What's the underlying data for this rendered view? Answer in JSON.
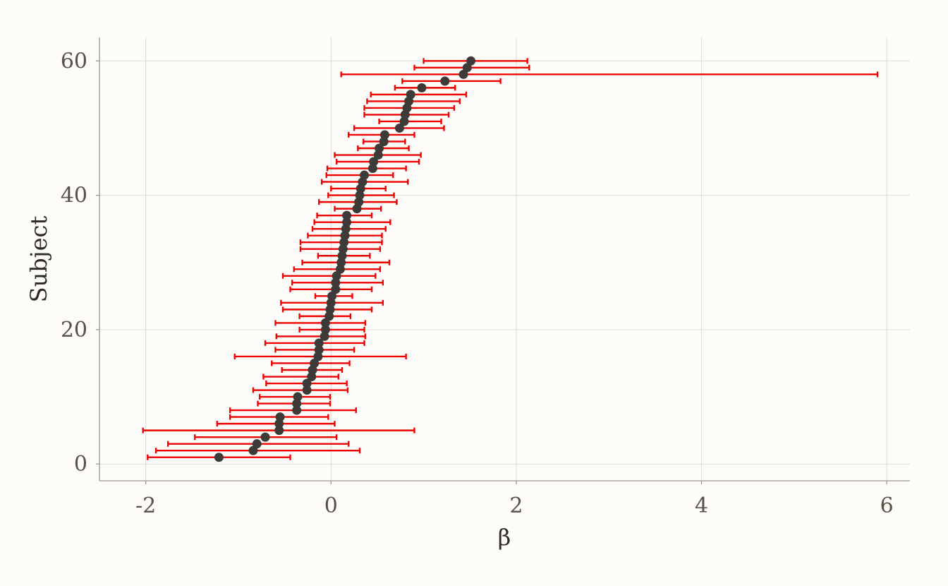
{
  "chart_data": {
    "type": "scatter",
    "xlabel": "β",
    "ylabel": "Subject",
    "xlim": [
      -2.5,
      6.25
    ],
    "ylim": [
      -2.5,
      63.5
    ],
    "xticks": [
      "-2",
      "0",
      "2",
      "4",
      "6"
    ],
    "yticks": [
      "0",
      "20",
      "40",
      "60"
    ],
    "grid": true,
    "colors": {
      "point": "#3d3a37",
      "error_bar": "#ee0000",
      "background": "#fdfcf9",
      "grid": "#dcdad5"
    },
    "series": [
      {
        "type": "errorbar",
        "points": [
          {
            "y": 1,
            "x": -1.21,
            "lo": -1.98,
            "hi": -0.44
          },
          {
            "y": 2,
            "x": -0.84,
            "lo": -1.89,
            "hi": 0.31
          },
          {
            "y": 3,
            "x": -0.8,
            "lo": -1.76,
            "hi": 0.19
          },
          {
            "y": 4,
            "x": -0.71,
            "lo": -1.47,
            "hi": 0.06
          },
          {
            "y": 5,
            "x": -0.56,
            "lo": -2.03,
            "hi": 0.9
          },
          {
            "y": 6,
            "x": -0.56,
            "lo": -1.23,
            "hi": 0.04
          },
          {
            "y": 7,
            "x": -0.55,
            "lo": -1.09,
            "hi": -0.03
          },
          {
            "y": 8,
            "x": -0.37,
            "lo": -1.09,
            "hi": 0.27
          },
          {
            "y": 9,
            "x": -0.37,
            "lo": -0.79,
            "hi": -0.01
          },
          {
            "y": 10,
            "x": -0.36,
            "lo": -0.77,
            "hi": -0.01
          },
          {
            "y": 11,
            "x": -0.26,
            "lo": -0.84,
            "hi": 0.18
          },
          {
            "y": 12,
            "x": -0.26,
            "lo": -0.7,
            "hi": 0.17
          },
          {
            "y": 13,
            "x": -0.21,
            "lo": -0.73,
            "hi": 0.08
          },
          {
            "y": 14,
            "x": -0.2,
            "lo": -0.53,
            "hi": 0.12
          },
          {
            "y": 15,
            "x": -0.18,
            "lo": -0.64,
            "hi": 0.2
          },
          {
            "y": 16,
            "x": -0.14,
            "lo": -1.04,
            "hi": 0.81
          },
          {
            "y": 17,
            "x": -0.13,
            "lo": -0.6,
            "hi": 0.25
          },
          {
            "y": 18,
            "x": -0.13,
            "lo": -0.71,
            "hi": 0.36
          },
          {
            "y": 19,
            "x": -0.07,
            "lo": -0.59,
            "hi": 0.37
          },
          {
            "y": 20,
            "x": -0.06,
            "lo": -0.34,
            "hi": 0.36
          },
          {
            "y": 21,
            "x": -0.06,
            "lo": -0.6,
            "hi": 0.37
          },
          {
            "y": 22,
            "x": -0.02,
            "lo": -0.34,
            "hi": 0.21
          },
          {
            "y": 23,
            "x": -0.01,
            "lo": -0.52,
            "hi": 0.44
          },
          {
            "y": 24,
            "x": 0.0,
            "lo": -0.54,
            "hi": 0.56
          },
          {
            "y": 25,
            "x": 0.01,
            "lo": -0.17,
            "hi": 0.23
          },
          {
            "y": 26,
            "x": 0.05,
            "lo": -0.44,
            "hi": 0.44
          },
          {
            "y": 27,
            "x": 0.05,
            "lo": -0.42,
            "hi": 0.56
          },
          {
            "y": 28,
            "x": 0.06,
            "lo": -0.52,
            "hi": 0.48
          },
          {
            "y": 29,
            "x": 0.1,
            "lo": -0.4,
            "hi": 0.53
          },
          {
            "y": 30,
            "x": 0.11,
            "lo": -0.31,
            "hi": 0.63
          },
          {
            "y": 31,
            "x": 0.12,
            "lo": -0.14,
            "hi": 0.42
          },
          {
            "y": 32,
            "x": 0.13,
            "lo": -0.33,
            "hi": 0.53
          },
          {
            "y": 33,
            "x": 0.14,
            "lo": -0.33,
            "hi": 0.55
          },
          {
            "y": 34,
            "x": 0.15,
            "lo": -0.25,
            "hi": 0.55
          },
          {
            "y": 35,
            "x": 0.16,
            "lo": -0.2,
            "hi": 0.59
          },
          {
            "y": 36,
            "x": 0.17,
            "lo": -0.18,
            "hi": 0.64
          },
          {
            "y": 37,
            "x": 0.17,
            "lo": -0.15,
            "hi": 0.44
          },
          {
            "y": 38,
            "x": 0.28,
            "lo": 0.04,
            "hi": 0.54
          },
          {
            "y": 39,
            "x": 0.3,
            "lo": -0.13,
            "hi": 0.71
          },
          {
            "y": 40,
            "x": 0.31,
            "lo": -0.03,
            "hi": 0.68
          },
          {
            "y": 41,
            "x": 0.32,
            "lo": 0.0,
            "hi": 0.59
          },
          {
            "y": 42,
            "x": 0.34,
            "lo": -0.1,
            "hi": 0.83
          },
          {
            "y": 43,
            "x": 0.36,
            "lo": -0.05,
            "hi": 0.67
          },
          {
            "y": 44,
            "x": 0.45,
            "lo": -0.04,
            "hi": 0.81
          },
          {
            "y": 45,
            "x": 0.46,
            "lo": 0.06,
            "hi": 0.95
          },
          {
            "y": 46,
            "x": 0.51,
            "lo": 0.04,
            "hi": 0.97
          },
          {
            "y": 47,
            "x": 0.52,
            "lo": 0.29,
            "hi": 0.84
          },
          {
            "y": 48,
            "x": 0.57,
            "lo": 0.35,
            "hi": 0.8
          },
          {
            "y": 49,
            "x": 0.58,
            "lo": 0.19,
            "hi": 0.9
          },
          {
            "y": 50,
            "x": 0.74,
            "lo": 0.25,
            "hi": 1.22
          },
          {
            "y": 51,
            "x": 0.79,
            "lo": 0.52,
            "hi": 1.19
          },
          {
            "y": 52,
            "x": 0.8,
            "lo": 0.36,
            "hi": 1.27
          },
          {
            "y": 53,
            "x": 0.82,
            "lo": 0.36,
            "hi": 1.33
          },
          {
            "y": 54,
            "x": 0.84,
            "lo": 0.39,
            "hi": 1.39
          },
          {
            "y": 55,
            "x": 0.86,
            "lo": 0.43,
            "hi": 1.46
          },
          {
            "y": 56,
            "x": 0.98,
            "lo": 0.69,
            "hi": 1.34
          },
          {
            "y": 57,
            "x": 1.23,
            "lo": 0.77,
            "hi": 1.83
          },
          {
            "y": 58,
            "x": 1.43,
            "lo": 0.11,
            "hi": 5.9
          },
          {
            "y": 59,
            "x": 1.47,
            "lo": 0.9,
            "hi": 2.14
          },
          {
            "y": 60,
            "x": 1.51,
            "lo": 1.0,
            "hi": 2.12
          }
        ]
      }
    ]
  }
}
